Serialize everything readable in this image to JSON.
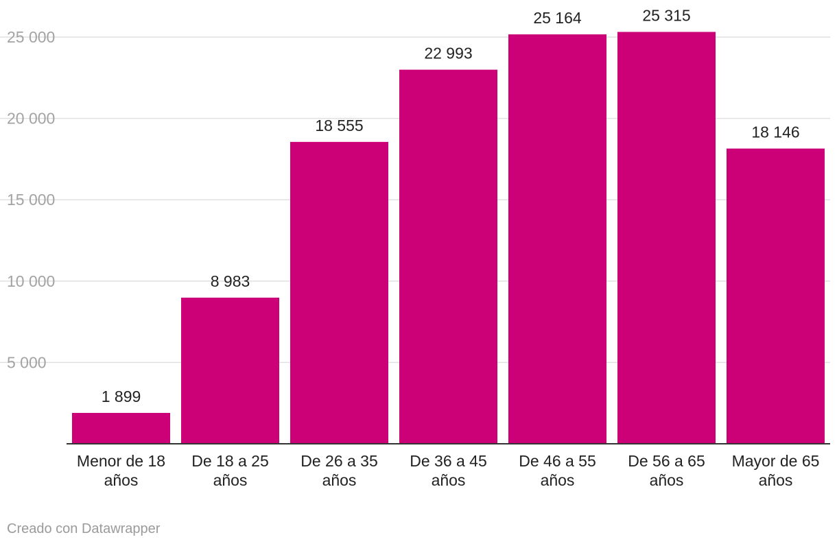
{
  "chart_data": {
    "type": "bar",
    "title": "",
    "xlabel": "",
    "ylabel": "",
    "categories": [
      [
        "Menor de 18",
        "años"
      ],
      [
        "De 18 a 25",
        "años"
      ],
      [
        "De 26 a 35",
        "años"
      ],
      [
        "De 36 a 45",
        "años"
      ],
      [
        "De 46 a 55",
        "años"
      ],
      [
        "De 56 a 65",
        "años"
      ],
      [
        "Mayor de 65",
        "años"
      ]
    ],
    "values": [
      1899,
      8983,
      18555,
      22993,
      25164,
      25315,
      18146
    ],
    "value_labels": [
      "1 899",
      "8 983",
      "18 555",
      "22 993",
      "25 164",
      "25 315",
      "18 146"
    ],
    "yticks": [
      5000,
      10000,
      15000,
      20000,
      25000
    ],
    "ytick_labels": [
      "5 000",
      "10 000",
      "15 000",
      "20 000",
      "25 000"
    ],
    "ylim": [
      0,
      25000
    ],
    "grid": true,
    "bar_color": "#cc0077"
  },
  "footer": {
    "credit": "Creado con Datawrapper"
  }
}
